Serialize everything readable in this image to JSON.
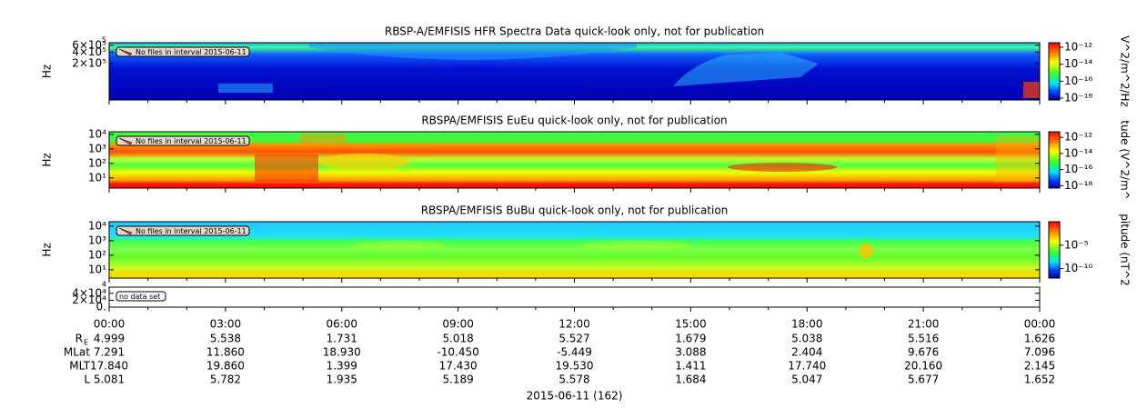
{
  "chart_data": [
    {
      "type": "spectrogram",
      "title": "RBSP-A/EMFISIS  HFR Spectra Data quick-look only, not for publication",
      "ylabel": "Hz",
      "yscale": "log",
      "ylim": [
        23000,
        700000
      ],
      "clipped_label": "5",
      "yticks": [
        {
          "value": 600000,
          "label": "6×10⁵"
        },
        {
          "value": 400000,
          "label": "4×10⁵"
        },
        {
          "value": 200000,
          "label": "2×10⁵"
        }
      ],
      "annotation": "No files in interval 2015-06-11",
      "colorbar": {
        "label": "V^2/m^2/Hz",
        "clim": [
          6e-19,
          3.5e-12
        ],
        "ticks": [
          {
            "value": 1e-12,
            "label": "10⁻¹²"
          },
          {
            "value": 1e-14,
            "label": "10⁻¹⁴"
          },
          {
            "value": 1e-16,
            "label": "10⁻¹⁶"
          },
          {
            "value": 1e-18,
            "label": "10⁻¹⁸"
          }
        ]
      }
    },
    {
      "type": "spectrogram",
      "title": "RBSPA/EMFISIS  EuEu quick-look only, not for publication",
      "ylabel": "Hz",
      "yscale": "log",
      "ylim": [
        2,
        15000
      ],
      "yticks": [
        {
          "value": 10000,
          "label": "10⁴"
        },
        {
          "value": 1000,
          "label": "10³"
        },
        {
          "value": 100,
          "label": "10²"
        },
        {
          "value": 10,
          "label": "10¹"
        }
      ],
      "annotation": "No files in interval 2015-06-11",
      "colorbar": {
        "label": "tude (V^2/m^",
        "clim": [
          5e-19,
          5e-12
        ],
        "ticks": [
          {
            "value": 1e-12,
            "label": "10⁻¹²"
          },
          {
            "value": 1e-14,
            "label": "10⁻¹⁴"
          },
          {
            "value": 1e-16,
            "label": "10⁻¹⁶"
          },
          {
            "value": 1e-18,
            "label": "10⁻¹⁸"
          }
        ]
      }
    },
    {
      "type": "spectrogram",
      "title": "RBSPA/EMFISIS  BuBu quick-look only, not for publication",
      "ylabel": "Hz",
      "yscale": "log",
      "ylim": [
        2.7,
        20000
      ],
      "yticks": [
        {
          "value": 10000,
          "label": "10⁴"
        },
        {
          "value": 1000,
          "label": "10³"
        },
        {
          "value": 100,
          "label": "10²"
        },
        {
          "value": 10,
          "label": "10¹"
        }
      ],
      "annotation": "No files in interval 2015-06-11",
      "colorbar": {
        "label": "pitude (nT^2",
        "clim": [
          1e-12,
          1
        ],
        "ticks": [
          {
            "value": 1e-05,
            "label": "10⁻⁵"
          },
          {
            "value": 1e-10,
            "label": "10⁻¹⁰"
          }
        ]
      }
    },
    {
      "type": "empty",
      "ylim": [
        0,
        58000
      ],
      "clipped_label": "4",
      "yticks": [
        {
          "value": 40000,
          "label": "4×10⁴"
        },
        {
          "value": 20000,
          "label": "2×10⁴"
        },
        {
          "value": 0,
          "label": "0."
        }
      ],
      "annotation": "no data set"
    }
  ],
  "ephemeris": {
    "times": [
      "00:00",
      "03:00",
      "06:00",
      "09:00",
      "12:00",
      "15:00",
      "18:00",
      "21:00",
      "00:00"
    ],
    "rows": [
      {
        "label": "R",
        "subscript": "E",
        "values": [
          "4.999",
          "5.538",
          "1.731",
          "5.018",
          "5.527",
          "1.679",
          "5.038",
          "5.516",
          "1.626"
        ]
      },
      {
        "label": "MLat",
        "values": [
          "7.291",
          "11.860",
          "18.930",
          "-10.450",
          "-5.449",
          "3.088",
          "2.404",
          "9.676",
          "7.096"
        ]
      },
      {
        "label": "MLT",
        "values": [
          "17.840",
          "19.860",
          "1.399",
          "17.430",
          "19.530",
          "1.411",
          "17.740",
          "20.160",
          "2.145"
        ]
      },
      {
        "label": "L",
        "values": [
          "5.081",
          "5.782",
          "1.935",
          "5.189",
          "5.578",
          "1.684",
          "5.047",
          "5.677",
          "1.652"
        ]
      }
    ],
    "date_label": "2015-06-11 (162)"
  }
}
